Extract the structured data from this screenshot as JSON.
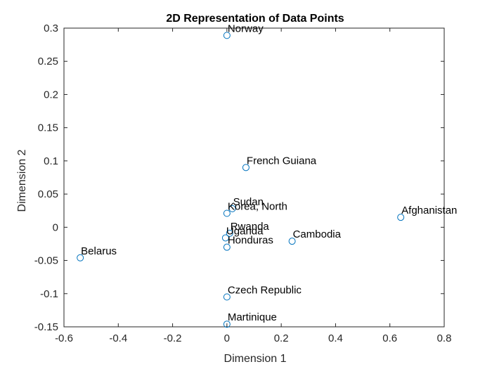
{
  "chart_data": {
    "type": "scatter",
    "title": "2D Representation of Data Points",
    "xlabel": "Dimension 1",
    "ylabel": "Dimension 2",
    "xlim": [
      -0.6,
      0.8
    ],
    "ylim": [
      -0.15,
      0.3
    ],
    "xticks": [
      -0.6,
      -0.4,
      -0.2,
      0,
      0.2,
      0.4,
      0.6,
      0.8
    ],
    "yticks": [
      -0.15,
      -0.1,
      -0.05,
      0,
      0.05,
      0.1,
      0.15,
      0.2,
      0.25,
      0.3
    ],
    "xtick_labels": [
      "-0.6",
      "-0.4",
      "-0.2",
      "0",
      "0.2",
      "0.4",
      "0.6",
      "0.8"
    ],
    "ytick_labels": [
      "-0.15",
      "-0.1",
      "-0.05",
      "0",
      "0.05",
      "0.1",
      "0.15",
      "0.2",
      "0.25",
      "0.3"
    ],
    "grid": false,
    "box": true,
    "marker": "circle-open",
    "colors": {
      "marker": "#0072bd",
      "axis": "#262626",
      "text": "#000000"
    },
    "points": [
      {
        "label": "Norway",
        "x": 0.0,
        "y": 0.289
      },
      {
        "label": "French Guiana",
        "x": 0.07,
        "y": 0.09
      },
      {
        "label": "Sudan",
        "x": 0.02,
        "y": 0.028
      },
      {
        "label": "Korea, North",
        "x": 0.0,
        "y": 0.021
      },
      {
        "label": "Afghanistan",
        "x": 0.64,
        "y": 0.015
      },
      {
        "label": "Rwanda",
        "x": 0.01,
        "y": -0.009
      },
      {
        "label": "Uganda",
        "x": -0.005,
        "y": -0.016
      },
      {
        "label": "Cambodia",
        "x": 0.24,
        "y": -0.021
      },
      {
        "label": "Honduras",
        "x": 0.0,
        "y": -0.03
      },
      {
        "label": "Belarus",
        "x": -0.54,
        "y": -0.046
      },
      {
        "label": "Czech Republic",
        "x": 0.0,
        "y": -0.105
      },
      {
        "label": "Martinique",
        "x": 0.0,
        "y": -0.146
      }
    ]
  }
}
